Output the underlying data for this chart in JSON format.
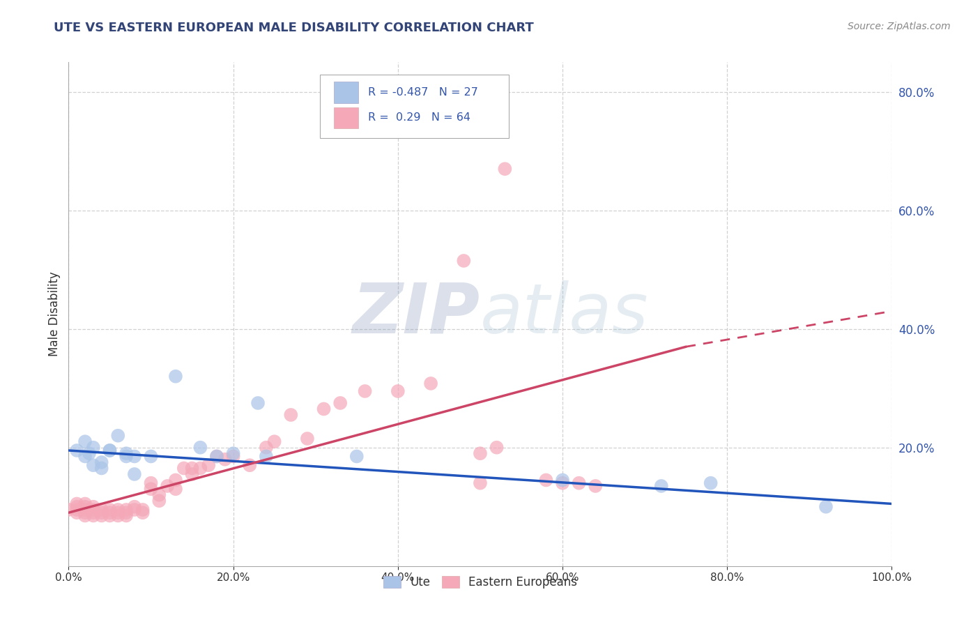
{
  "title": "UTE VS EASTERN EUROPEAN MALE DISABILITY CORRELATION CHART",
  "source": "Source: ZipAtlas.com",
  "xlabel": "",
  "ylabel": "Male Disability",
  "legend_labels": [
    "Ute",
    "Eastern Europeans"
  ],
  "ute_R": -0.487,
  "ute_N": 27,
  "ee_R": 0.29,
  "ee_N": 64,
  "ute_color": "#aac4e8",
  "ee_color": "#f4a8b8",
  "ute_line_color": "#2255bb",
  "ee_line_color": "#cc4466",
  "background_color": "#ffffff",
  "grid_color": "#cccccc",
  "title_color": "#334477",
  "source_color": "#888888",
  "watermark": "ZIPatlas",
  "xlim": [
    0,
    1
  ],
  "ylim": [
    0,
    0.85
  ],
  "ute_x": [
    0.01,
    0.02,
    0.025,
    0.03,
    0.04,
    0.05,
    0.06,
    0.07,
    0.08,
    0.02,
    0.03,
    0.04,
    0.05,
    0.07,
    0.08,
    0.1,
    0.13,
    0.16,
    0.18,
    0.2,
    0.23,
    0.24,
    0.35,
    0.6,
    0.72,
    0.78,
    0.92
  ],
  "ute_y": [
    0.195,
    0.21,
    0.19,
    0.2,
    0.175,
    0.195,
    0.22,
    0.185,
    0.155,
    0.185,
    0.17,
    0.165,
    0.195,
    0.19,
    0.185,
    0.185,
    0.32,
    0.2,
    0.185,
    0.19,
    0.275,
    0.185,
    0.185,
    0.145,
    0.135,
    0.14,
    0.1
  ],
  "ee_x": [
    0.0,
    0.01,
    0.01,
    0.01,
    0.01,
    0.02,
    0.02,
    0.02,
    0.02,
    0.02,
    0.03,
    0.03,
    0.03,
    0.03,
    0.04,
    0.04,
    0.04,
    0.05,
    0.05,
    0.05,
    0.06,
    0.06,
    0.06,
    0.07,
    0.07,
    0.07,
    0.08,
    0.08,
    0.09,
    0.09,
    0.1,
    0.1,
    0.11,
    0.11,
    0.12,
    0.13,
    0.13,
    0.14,
    0.15,
    0.15,
    0.16,
    0.17,
    0.18,
    0.19,
    0.2,
    0.22,
    0.24,
    0.25,
    0.27,
    0.29,
    0.31,
    0.33,
    0.36,
    0.4,
    0.44,
    0.48,
    0.5,
    0.52,
    0.53,
    0.58,
    0.6,
    0.62,
    0.64,
    0.5
  ],
  "ee_y": [
    0.095,
    0.09,
    0.095,
    0.1,
    0.105,
    0.085,
    0.09,
    0.095,
    0.1,
    0.105,
    0.085,
    0.09,
    0.095,
    0.1,
    0.085,
    0.09,
    0.095,
    0.085,
    0.09,
    0.095,
    0.085,
    0.09,
    0.095,
    0.085,
    0.09,
    0.095,
    0.095,
    0.1,
    0.09,
    0.095,
    0.13,
    0.14,
    0.11,
    0.12,
    0.135,
    0.145,
    0.13,
    0.165,
    0.155,
    0.165,
    0.165,
    0.17,
    0.185,
    0.18,
    0.185,
    0.17,
    0.2,
    0.21,
    0.255,
    0.215,
    0.265,
    0.275,
    0.295,
    0.295,
    0.308,
    0.515,
    0.19,
    0.2,
    0.67,
    0.145,
    0.14,
    0.14,
    0.135,
    0.14
  ],
  "ute_line_x0": 0.0,
  "ute_line_y0": 0.195,
  "ute_line_x1": 1.0,
  "ute_line_y1": 0.105,
  "ee_line_x0": 0.0,
  "ee_line_y0": 0.09,
  "ee_line_x1": 0.75,
  "ee_line_y1": 0.37,
  "ee_line_dashed_x0": 0.75,
  "ee_line_dashed_y0": 0.37,
  "ee_line_dashed_x1": 1.0,
  "ee_line_dashed_y1": 0.43
}
